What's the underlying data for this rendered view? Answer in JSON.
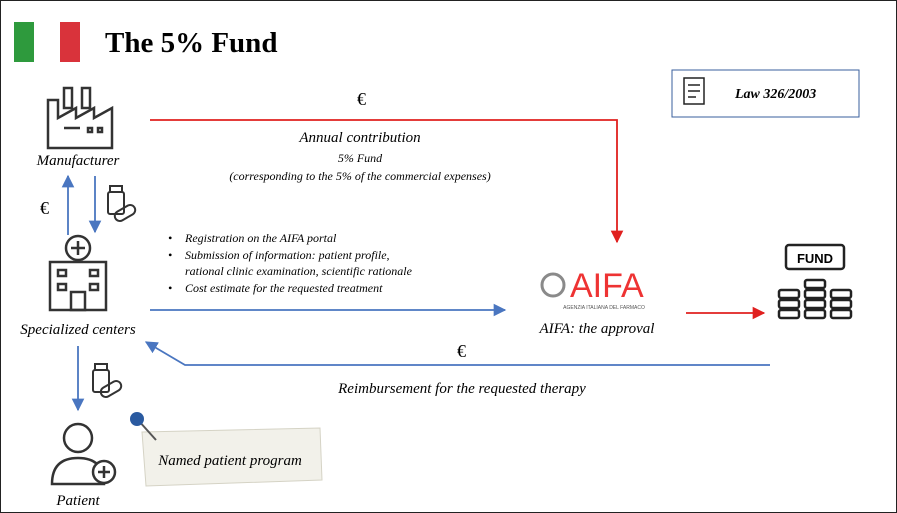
{
  "header": {
    "title": "The 5% Fund"
  },
  "law": "Law 326/2003",
  "nodes": {
    "manufacturer": "Manufacturer",
    "centers": "Specialized centers",
    "aifa": "AIFA: the approval",
    "patient": "Patient",
    "fund": "FUND"
  },
  "aifa_logo": {
    "name": "AIFA",
    "subtitle": "AGENZIA ITALIANA DEL FARMACO"
  },
  "currency": [
    "€",
    "€",
    "€"
  ],
  "contribution": {
    "title": "Annual contribution",
    "line1": "5% Fund",
    "line2": "(corresponding to the 5% of the commercial expenses)"
  },
  "request_steps": [
    "Registration on the AIFA portal",
    "Submission of information: patient profile,",
    "rational clinic examination, scientific rationale",
    "Cost estimate for the requested treatment"
  ],
  "reimbursement": "Reimbursement for the requested therapy",
  "note": "Named patient program"
}
